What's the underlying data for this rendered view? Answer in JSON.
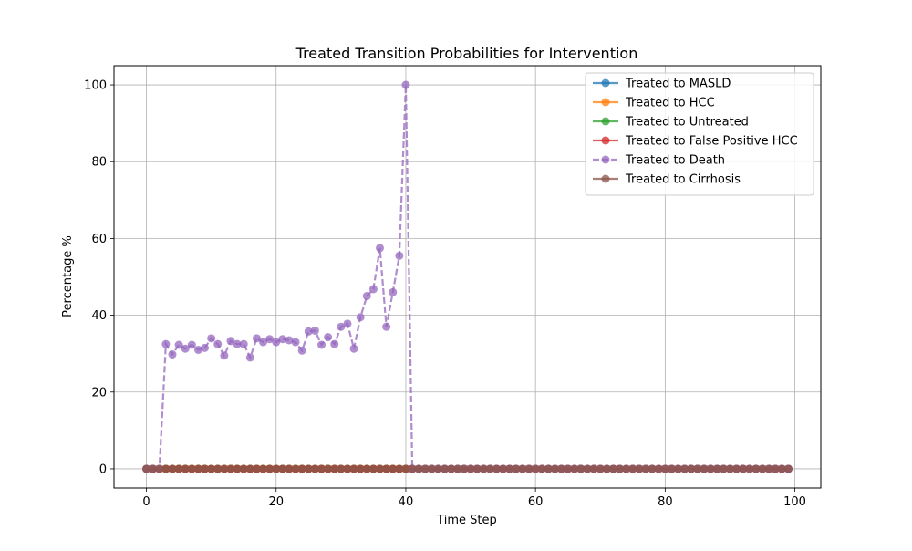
{
  "chart_data": {
    "type": "line",
    "title": "Treated Transition Probabilities for Intervention",
    "xlabel": "Time Step",
    "ylabel": "Percentage %",
    "xlim": [
      -5,
      104
    ],
    "ylim": [
      -5,
      105
    ],
    "xticks": [
      0,
      20,
      40,
      60,
      80,
      100
    ],
    "yticks": [
      0,
      20,
      40,
      60,
      80,
      100
    ],
    "grid": true,
    "legend_position": "top-right",
    "x_start": 0,
    "x_step": 1,
    "series": [
      {
        "name": "Treated to MASLD",
        "color": "#1f77b4",
        "linestyle": "solid",
        "constant_value": 0
      },
      {
        "name": "Treated to HCC",
        "color": "#ff7f0e",
        "linestyle": "solid",
        "constant_value": 0
      },
      {
        "name": "Treated to Untreated",
        "color": "#2ca02c",
        "linestyle": "solid",
        "constant_value": 0
      },
      {
        "name": "Treated to False Positive HCC",
        "color": "#d62728",
        "linestyle": "solid",
        "constant_value": 0
      },
      {
        "name": "Treated to Death",
        "color": "#9467bd",
        "linestyle": "dashed",
        "values": [
          0,
          0,
          0,
          32.5,
          29.8,
          32.3,
          31.3,
          32.3,
          31.0,
          31.5,
          34.0,
          32.5,
          29.5,
          33.3,
          32.5,
          32.5,
          29.0,
          34.0,
          33.0,
          33.8,
          33.0,
          33.8,
          33.5,
          33.0,
          30.8,
          35.8,
          36.0,
          32.3,
          34.3,
          32.5,
          37.0,
          37.8,
          31.3,
          39.5,
          45.0,
          46.8,
          57.5,
          37.0,
          46.0,
          55.5,
          100,
          0,
          0,
          0,
          0,
          0,
          0,
          0,
          0,
          0,
          0,
          0,
          0,
          0,
          0,
          0,
          0,
          0,
          0,
          0,
          0,
          0,
          0,
          0,
          0,
          0,
          0,
          0,
          0,
          0,
          0,
          0,
          0,
          0,
          0,
          0,
          0,
          0,
          0,
          0,
          0,
          0,
          0,
          0,
          0,
          0,
          0,
          0,
          0,
          0,
          0,
          0,
          0,
          0,
          0,
          0,
          0,
          0,
          0,
          0
        ]
      },
      {
        "name": "Treated to Cirrhosis",
        "color": "#8c564b",
        "linestyle": "solid",
        "constant_value": 0
      }
    ]
  }
}
